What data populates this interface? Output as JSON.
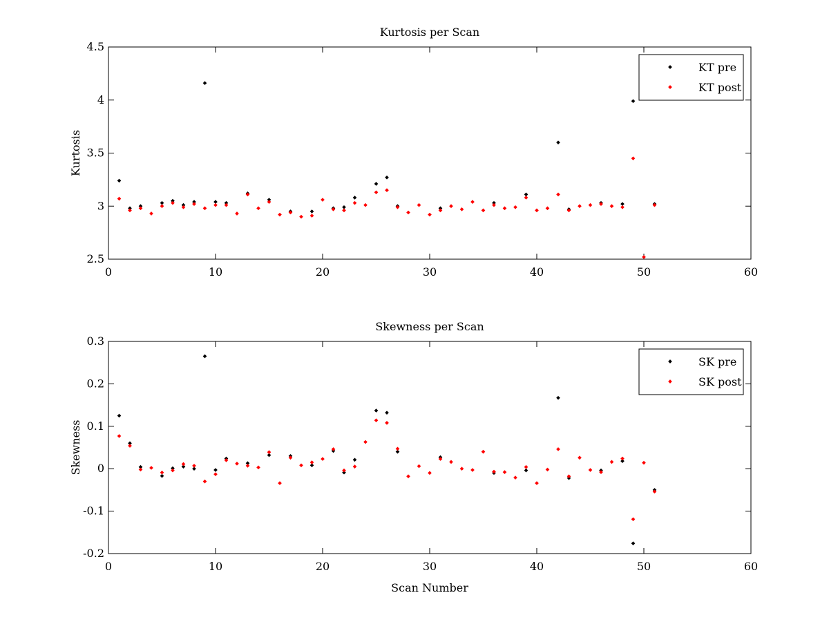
{
  "chart_data": [
    {
      "type": "scatter",
      "title": "Kurtosis per Scan",
      "xlabel": "",
      "ylabel": "Kurtosis",
      "xlim": [
        0,
        60
      ],
      "ylim": [
        2.5,
        4.5
      ],
      "xticks": [
        0,
        10,
        20,
        30,
        40,
        50,
        60
      ],
      "yticks": [
        2.5,
        3,
        3.5,
        4,
        4.5
      ],
      "ytick_labels": [
        "2.5",
        "3",
        "3.5",
        "4",
        "4.5"
      ],
      "grid": false,
      "legend_position": "top-right",
      "series": [
        {
          "name": "KT pre",
          "color": "#000000",
          "marker": "point",
          "points": [
            [
              1,
              3.24
            ],
            [
              2,
              2.98
            ],
            [
              3,
              3.0
            ],
            [
              5,
              3.03
            ],
            [
              6,
              3.05
            ],
            [
              7,
              3.01
            ],
            [
              8,
              3.04
            ],
            [
              9,
              4.16
            ],
            [
              10,
              3.04
            ],
            [
              11,
              3.03
            ],
            [
              13,
              3.12
            ],
            [
              15,
              3.06
            ],
            [
              17,
              2.95
            ],
            [
              19,
              2.95
            ],
            [
              21,
              2.98
            ],
            [
              22,
              2.99
            ],
            [
              23,
              3.08
            ],
            [
              25,
              3.21
            ],
            [
              26,
              3.27
            ],
            [
              27,
              3.0
            ],
            [
              31,
              2.98
            ],
            [
              36,
              3.03
            ],
            [
              39,
              3.11
            ],
            [
              42,
              3.6
            ],
            [
              43,
              2.97
            ],
            [
              46,
              3.03
            ],
            [
              48,
              3.02
            ],
            [
              49,
              3.99
            ],
            [
              51,
              3.02
            ]
          ]
        },
        {
          "name": "KT post",
          "color": "#ff0000",
          "marker": "point",
          "points": [
            [
              1,
              3.07
            ],
            [
              2,
              2.96
            ],
            [
              3,
              2.98
            ],
            [
              4,
              2.93
            ],
            [
              5,
              3.0
            ],
            [
              6,
              3.03
            ],
            [
              7,
              2.99
            ],
            [
              8,
              3.02
            ],
            [
              9,
              2.98
            ],
            [
              10,
              3.01
            ],
            [
              11,
              3.01
            ],
            [
              12,
              2.93
            ],
            [
              13,
              3.11
            ],
            [
              14,
              2.98
            ],
            [
              15,
              3.04
            ],
            [
              16,
              2.92
            ],
            [
              17,
              2.94
            ],
            [
              18,
              2.9
            ],
            [
              19,
              2.91
            ],
            [
              20,
              3.06
            ],
            [
              21,
              2.97
            ],
            [
              22,
              2.96
            ],
            [
              23,
              3.03
            ],
            [
              24,
              3.01
            ],
            [
              25,
              3.13
            ],
            [
              26,
              3.15
            ],
            [
              27,
              2.99
            ],
            [
              28,
              2.94
            ],
            [
              29,
              3.01
            ],
            [
              30,
              2.92
            ],
            [
              31,
              2.96
            ],
            [
              32,
              3.0
            ],
            [
              33,
              2.97
            ],
            [
              34,
              3.04
            ],
            [
              35,
              2.96
            ],
            [
              36,
              3.01
            ],
            [
              37,
              2.98
            ],
            [
              38,
              2.99
            ],
            [
              39,
              3.08
            ],
            [
              40,
              2.96
            ],
            [
              41,
              2.98
            ],
            [
              42,
              3.11
            ],
            [
              43,
              2.96
            ],
            [
              44,
              3.0
            ],
            [
              45,
              3.01
            ],
            [
              46,
              3.02
            ],
            [
              47,
              3.0
            ],
            [
              48,
              2.99
            ],
            [
              49,
              3.45
            ],
            [
              50,
              2.52
            ],
            [
              51,
              3.01
            ]
          ]
        }
      ]
    },
    {
      "type": "scatter",
      "title": "Skewness per Scan",
      "xlabel": "Scan Number",
      "ylabel": "Skewness",
      "xlim": [
        0,
        60
      ],
      "ylim": [
        -0.2,
        0.3
      ],
      "xticks": [
        0,
        10,
        20,
        30,
        40,
        50,
        60
      ],
      "yticks": [
        -0.2,
        -0.1,
        0,
        0.1,
        0.2,
        0.3
      ],
      "ytick_labels": [
        "-0.2",
        "-0.1",
        "0",
        "0.1",
        "0.2",
        "0.3"
      ],
      "grid": false,
      "legend_position": "top-right",
      "series": [
        {
          "name": "SK pre",
          "color": "#000000",
          "marker": "point",
          "points": [
            [
              1,
              0.125
            ],
            [
              2,
              0.06
            ],
            [
              3,
              0.004
            ],
            [
              5,
              -0.017
            ],
            [
              6,
              0.001
            ],
            [
              7,
              0.005
            ],
            [
              8,
              0.0
            ],
            [
              9,
              0.265
            ],
            [
              10,
              -0.003
            ],
            [
              11,
              0.024
            ],
            [
              13,
              0.013
            ],
            [
              15,
              0.032
            ],
            [
              17,
              0.03
            ],
            [
              19,
              0.008
            ],
            [
              21,
              0.042
            ],
            [
              22,
              -0.009
            ],
            [
              23,
              0.021
            ],
            [
              25,
              0.137
            ],
            [
              26,
              0.132
            ],
            [
              27,
              0.04
            ],
            [
              31,
              0.027
            ],
            [
              36,
              -0.01
            ],
            [
              39,
              -0.004
            ],
            [
              42,
              0.167
            ],
            [
              43,
              -0.022
            ],
            [
              46,
              -0.004
            ],
            [
              48,
              0.018
            ],
            [
              49,
              -0.176
            ],
            [
              51,
              -0.05
            ]
          ]
        },
        {
          "name": "SK post",
          "color": "#ff0000",
          "marker": "point",
          "points": [
            [
              1,
              0.077
            ],
            [
              2,
              0.054
            ],
            [
              3,
              -0.002
            ],
            [
              4,
              0.002
            ],
            [
              5,
              -0.009
            ],
            [
              6,
              -0.004
            ],
            [
              7,
              0.011
            ],
            [
              8,
              0.007
            ],
            [
              9,
              -0.03
            ],
            [
              10,
              -0.013
            ],
            [
              11,
              0.02
            ],
            [
              12,
              0.012
            ],
            [
              13,
              0.007
            ],
            [
              14,
              0.003
            ],
            [
              15,
              0.039
            ],
            [
              16,
              -0.034
            ],
            [
              17,
              0.026
            ],
            [
              18,
              0.008
            ],
            [
              19,
              0.015
            ],
            [
              20,
              0.023
            ],
            [
              21,
              0.046
            ],
            [
              22,
              -0.004
            ],
            [
              23,
              0.005
            ],
            [
              24,
              0.063
            ],
            [
              25,
              0.114
            ],
            [
              26,
              0.108
            ],
            [
              27,
              0.047
            ],
            [
              28,
              -0.018
            ],
            [
              29,
              0.006
            ],
            [
              30,
              -0.01
            ],
            [
              31,
              0.023
            ],
            [
              32,
              0.016
            ],
            [
              33,
              0.0
            ],
            [
              34,
              -0.003
            ],
            [
              35,
              0.04
            ],
            [
              36,
              -0.007
            ],
            [
              37,
              -0.008
            ],
            [
              38,
              -0.021
            ],
            [
              39,
              0.004
            ],
            [
              40,
              -0.034
            ],
            [
              41,
              -0.002
            ],
            [
              42,
              0.046
            ],
            [
              43,
              -0.018
            ],
            [
              44,
              0.026
            ],
            [
              45,
              -0.003
            ],
            [
              46,
              -0.008
            ],
            [
              47,
              0.016
            ],
            [
              48,
              0.024
            ],
            [
              49,
              -0.119
            ],
            [
              50,
              0.014
            ],
            [
              51,
              -0.054
            ]
          ]
        }
      ]
    }
  ]
}
